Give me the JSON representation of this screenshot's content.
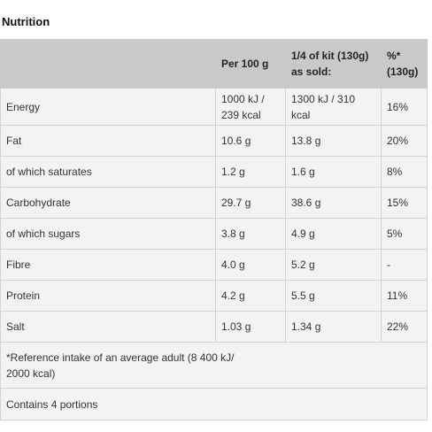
{
  "title": "Nutrition",
  "table": {
    "header": [
      "Per 100 g",
      "1/4 of kit (130g) as sold:",
      "%* (130g)"
    ],
    "rows": [
      [
        "Energy",
        "1000 kJ / 239 kcal",
        "1300 kJ / 310 kcal",
        "16%"
      ],
      [
        "Fat",
        "10.6 g",
        "13.8 g",
        "20%"
      ],
      [
        "of which saturates",
        "1.2 g",
        "1.6 g",
        "8%"
      ],
      [
        "Carbohydrate",
        "29.7 g",
        "38.6 g",
        "15%"
      ],
      [
        "of which sugars",
        "3.8 g",
        "4.9 g",
        "5%"
      ],
      [
        "Fibre",
        "4.0 g",
        "5.2 g",
        "-"
      ],
      [
        "Protein",
        "4.2 g",
        "5.5 g",
        "11%"
      ],
      [
        "Salt",
        "1.03 g",
        "1.34 g",
        "22%"
      ]
    ],
    "notes": [
      "*Reference intake of an average adult (8 400 kJ/ 2000 kcal)",
      "Contains 4 portions"
    ]
  }
}
